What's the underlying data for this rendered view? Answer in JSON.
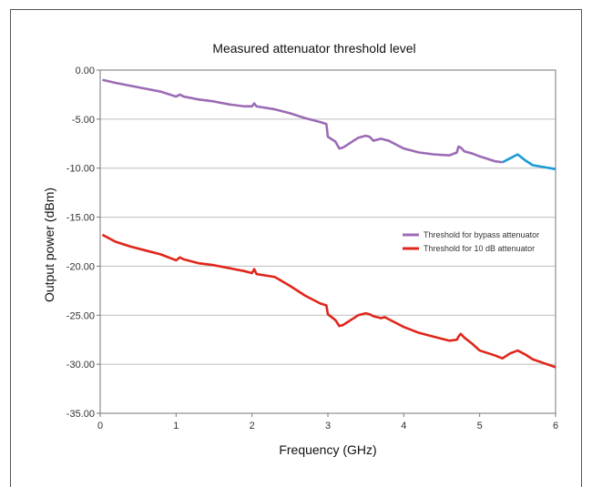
{
  "chart_data": {
    "type": "line",
    "title": "Measured attenuator threshold level",
    "xlabel": "Frequency  (GHz)",
    "ylabel": "Output power (dBm)",
    "xlim": [
      0,
      6
    ],
    "ylim": [
      -35,
      0
    ],
    "x_ticks": [
      "0",
      "1",
      "2",
      "3",
      "4",
      "5",
      "6"
    ],
    "y_ticks": [
      "0.00",
      "-5.00",
      "-10.00",
      "-15.00",
      "-20.00",
      "-25.00",
      "-30.00",
      "-35.00"
    ],
    "grid": "horizontal",
    "legend_position": "right-center",
    "series": [
      {
        "name": "Threshold for bypass attenuator",
        "color": "#9b6bb5",
        "tail_color": "#1a9ad6",
        "tail_from_x": 5.3,
        "x": [
          0.03,
          0.2,
          0.4,
          0.6,
          0.8,
          1.0,
          1.05,
          1.1,
          1.3,
          1.5,
          1.7,
          1.9,
          2.0,
          2.03,
          2.06,
          2.3,
          2.5,
          2.7,
          2.9,
          2.98,
          3.0,
          3.1,
          3.15,
          3.2,
          3.3,
          3.4,
          3.5,
          3.55,
          3.6,
          3.7,
          3.75,
          3.8,
          3.9,
          4.0,
          4.2,
          4.4,
          4.6,
          4.7,
          4.72,
          4.75,
          4.8,
          4.9,
          5.0,
          5.2,
          5.3,
          5.4,
          5.5,
          5.6,
          5.7,
          5.85,
          6.0
        ],
        "y": [
          -1.0,
          -1.3,
          -1.6,
          -1.9,
          -2.2,
          -2.7,
          -2.5,
          -2.7,
          -3.0,
          -3.2,
          -3.5,
          -3.7,
          -3.7,
          -3.4,
          -3.7,
          -4.0,
          -4.4,
          -4.9,
          -5.3,
          -5.5,
          -6.8,
          -7.3,
          -8.0,
          -7.9,
          -7.4,
          -6.9,
          -6.7,
          -6.8,
          -7.2,
          -7.0,
          -7.1,
          -7.2,
          -7.6,
          -8.0,
          -8.4,
          -8.6,
          -8.7,
          -8.4,
          -7.8,
          -7.9,
          -8.3,
          -8.5,
          -8.8,
          -9.3,
          -9.4,
          -9.0,
          -8.6,
          -9.2,
          -9.7,
          -9.9,
          -10.1
        ]
      },
      {
        "name": "Threshold for 10 dB attenuator",
        "color": "#e0261b",
        "x": [
          0.03,
          0.2,
          0.4,
          0.6,
          0.8,
          1.0,
          1.05,
          1.1,
          1.3,
          1.5,
          1.7,
          1.9,
          2.0,
          2.03,
          2.06,
          2.3,
          2.5,
          2.7,
          2.9,
          2.98,
          3.0,
          3.1,
          3.15,
          3.2,
          3.3,
          3.4,
          3.5,
          3.55,
          3.6,
          3.7,
          3.75,
          3.8,
          3.9,
          4.0,
          4.2,
          4.4,
          4.6,
          4.7,
          4.72,
          4.75,
          4.8,
          4.9,
          5.0,
          5.2,
          5.3,
          5.4,
          5.5,
          5.6,
          5.7,
          5.85,
          6.0
        ],
        "y": [
          -16.8,
          -17.5,
          -18.0,
          -18.4,
          -18.8,
          -19.4,
          -19.1,
          -19.3,
          -19.7,
          -19.9,
          -20.2,
          -20.5,
          -20.7,
          -20.3,
          -20.8,
          -21.1,
          -22.0,
          -23.0,
          -23.8,
          -24.0,
          -24.9,
          -25.5,
          -26.1,
          -26.0,
          -25.5,
          -25.0,
          -24.8,
          -24.9,
          -25.1,
          -25.3,
          -25.2,
          -25.4,
          -25.8,
          -26.2,
          -26.8,
          -27.2,
          -27.6,
          -27.5,
          -27.2,
          -26.9,
          -27.3,
          -27.9,
          -28.6,
          -29.1,
          -29.4,
          -28.9,
          -28.6,
          -29.0,
          -29.5,
          -29.9,
          -30.3
        ]
      }
    ]
  }
}
